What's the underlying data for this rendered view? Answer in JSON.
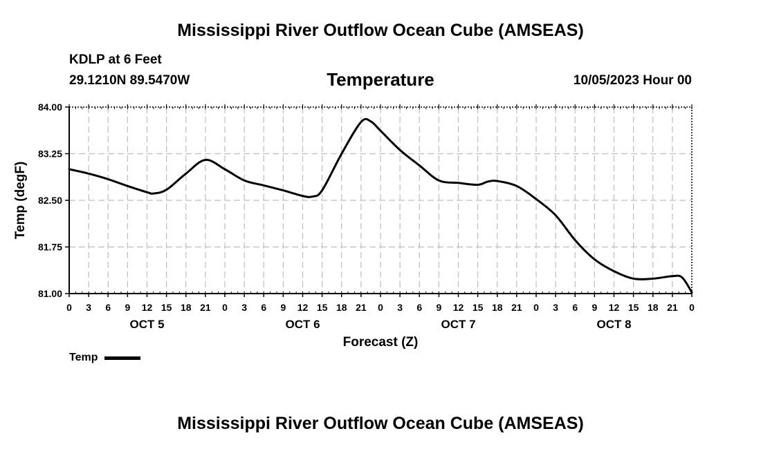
{
  "header": {
    "main_title": "Mississippi River Outflow Ocean Cube (AMSEAS)",
    "station": "KDLP at 6 Feet",
    "coords": "29.1210N  89.5470W",
    "chart_title": "Temperature",
    "run_time": "10/05/2023 Hour 00"
  },
  "footer": {
    "title": "Mississippi River Outflow Ocean Cube (AMSEAS)"
  },
  "legend": {
    "label": "Temp",
    "color": "#000000"
  },
  "chart_data": {
    "type": "line",
    "title": "Temperature",
    "xlabel": "Forecast (Z)",
    "ylabel": "Temp (degF)",
    "ylim": [
      81.0,
      84.0
    ],
    "yticks": [
      "84.00",
      "83.25",
      "82.50",
      "81.75",
      "81.00"
    ],
    "xlim_hours": [
      0,
      96
    ],
    "xtick_labels": [
      "0",
      "3",
      "6",
      "9",
      "12",
      "15",
      "18",
      "21",
      "0",
      "3",
      "6",
      "9",
      "12",
      "15",
      "18",
      "21",
      "0",
      "3",
      "6",
      "9",
      "12",
      "15",
      "18",
      "21",
      "0",
      "3",
      "6",
      "9",
      "12",
      "15",
      "18",
      "21",
      "0"
    ],
    "day_labels": [
      "OCT 5",
      "OCT 6",
      "OCT 7",
      "OCT 8"
    ],
    "grid": true,
    "series": [
      {
        "name": "Temp",
        "color": "#000000",
        "x_hours": [
          0,
          3,
          6,
          9,
          12,
          13,
          15,
          18,
          21,
          24,
          27,
          30,
          33,
          36,
          37.5,
          39,
          42,
          45,
          46.5,
          48,
          51,
          54,
          57,
          60,
          63,
          64.5,
          66,
          69,
          72,
          75,
          78,
          81,
          84,
          87,
          90,
          93,
          94.5,
          96
        ],
        "values": [
          83.0,
          82.93,
          82.84,
          82.73,
          82.63,
          82.61,
          82.67,
          82.93,
          83.15,
          83.0,
          82.82,
          82.74,
          82.66,
          82.57,
          82.56,
          82.66,
          83.25,
          83.76,
          83.77,
          83.62,
          83.31,
          83.06,
          82.82,
          82.78,
          82.75,
          82.8,
          82.81,
          82.73,
          82.52,
          82.26,
          81.86,
          81.55,
          81.36,
          81.24,
          81.24,
          81.28,
          81.26,
          81.02
        ]
      }
    ]
  }
}
